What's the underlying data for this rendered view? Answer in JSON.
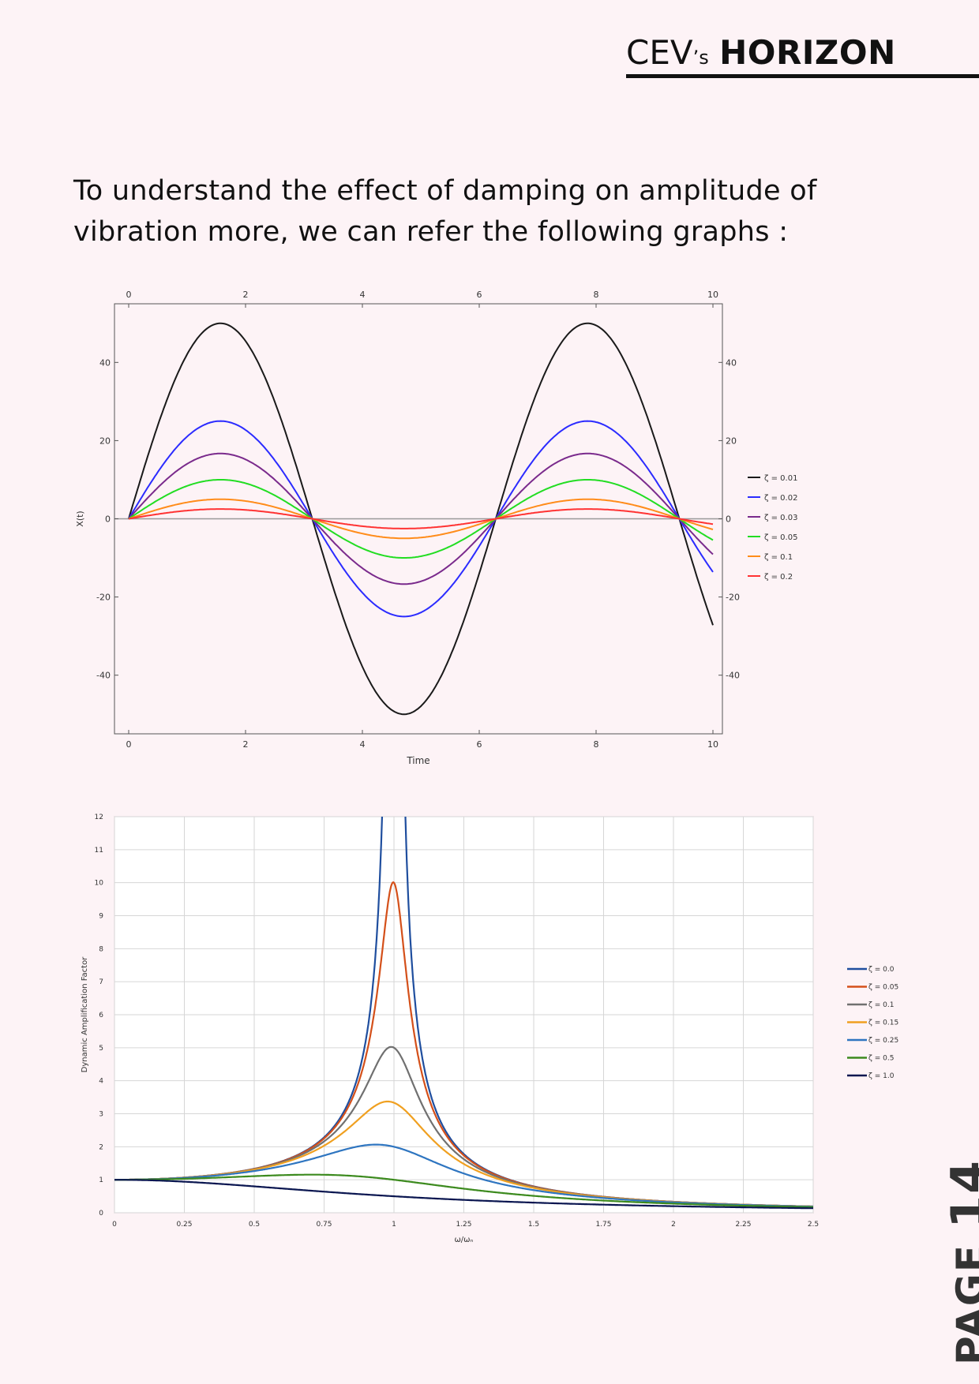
{
  "header": {
    "brand_prefix": "CEV",
    "brand_possessive": "’s",
    "brand_name": "HORIZON"
  },
  "intro_text": "To understand the effect of damping on amplitude of vibration more, we can refer the following graphs :",
  "page_label": {
    "word": "PAGE",
    "number": "14"
  },
  "chart_data": [
    {
      "type": "line",
      "xlabel": "Time",
      "ylabel": "X(t)",
      "xlim": [
        0,
        10
      ],
      "ylim": [
        -55,
        55
      ],
      "xticks": [
        "0",
        "2",
        "4",
        "6",
        "8",
        "10"
      ],
      "yticks": [
        "40",
        "20",
        "0",
        "-20",
        "-40"
      ],
      "grid": false,
      "legend_position": "right",
      "series": [
        {
          "name": "ζ = 0.01",
          "color": "#1a1a1a",
          "amplitude": 50
        },
        {
          "name": "ζ = 0.02",
          "color": "#2b2bff",
          "amplitude": 25
        },
        {
          "name": "ζ = 0.03",
          "color": "#7a2a8c",
          "amplitude": 16.7
        },
        {
          "name": "ζ = 0.05",
          "color": "#22dd22",
          "amplitude": 10
        },
        {
          "name": "ζ = 0.1",
          "color": "#ff8c1a",
          "amplitude": 5
        },
        {
          "name": "ζ = 0.2",
          "color": "#ff3333",
          "amplitude": 2.5
        }
      ]
    },
    {
      "type": "line",
      "xlabel": "ω/ωₙ",
      "ylabel": "Dynamic Amplification Factor",
      "xlim": [
        0,
        2.5
      ],
      "ylim": [
        0,
        12
      ],
      "xticks": [
        "0",
        "0.25",
        "0.5",
        "0.75",
        "1",
        "1.25",
        "1.5",
        "1.75",
        "2",
        "2.25",
        "2.5"
      ],
      "yticks": [
        "0",
        "1",
        "2",
        "3",
        "4",
        "5",
        "6",
        "7",
        "8",
        "9",
        "10",
        "11",
        "12"
      ],
      "grid": true,
      "legend_position": "right",
      "series": [
        {
          "name": "ζ = 0.0",
          "color": "#1f4e9e",
          "zeta": 0.0
        },
        {
          "name": "ζ = 0.05",
          "color": "#d4501a",
          "zeta": 0.05
        },
        {
          "name": "ζ = 0.1",
          "color": "#707070",
          "zeta": 0.1
        },
        {
          "name": "ζ = 0.15",
          "color": "#f0a020",
          "zeta": 0.15
        },
        {
          "name": "ζ = 0.25",
          "color": "#2e75c0",
          "zeta": 0.25
        },
        {
          "name": "ζ = 0.5",
          "color": "#3c8a1e",
          "zeta": 0.5
        },
        {
          "name": "ζ = 1.0",
          "color": "#0a1650",
          "zeta": 1.0
        }
      ]
    }
  ]
}
